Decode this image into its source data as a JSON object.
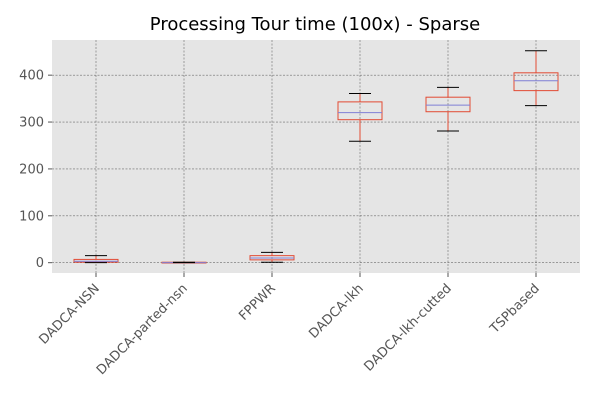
{
  "chart_data": {
    "type": "box",
    "title": "Processing Tour time (100x) - Sparse",
    "xlabel": "",
    "ylabel": "",
    "ylim": [
      -22,
      475
    ],
    "yticks": [
      0,
      100,
      200,
      300,
      400
    ],
    "grid": true,
    "categories": [
      "DADCA-NSN",
      "DADCA-parted-nsn",
      "FPPWR",
      "DADCA-lkh",
      "DADCA-lkh-cutted",
      "TSPbased"
    ],
    "boxes": [
      {
        "label": "DADCA-NSN",
        "whislo": 0,
        "q1": 1,
        "med": 3,
        "q3": 7,
        "whishi": 15
      },
      {
        "label": "DADCA-parted-nsn",
        "whislo": 0,
        "q1": 0,
        "med": 0,
        "q3": 1,
        "whishi": 1
      },
      {
        "label": "FPPWR",
        "whislo": 1,
        "q1": 6,
        "med": 10,
        "q3": 15,
        "whishi": 22
      },
      {
        "label": "DADCA-lkh",
        "whislo": 259,
        "q1": 305,
        "med": 320,
        "q3": 343,
        "whishi": 361
      },
      {
        "label": "DADCA-lkh-cutted",
        "whislo": 281,
        "q1": 322,
        "med": 336,
        "q3": 353,
        "whishi": 374
      },
      {
        "label": "TSPbased",
        "whislo": 335,
        "q1": 367,
        "med": 388,
        "q3": 405,
        "whishi": 452
      }
    ],
    "colors": {
      "plot_background": "#e5e5e5",
      "grid": "#6b6b6b",
      "box": "#e24a33",
      "median": "#7f7fd5",
      "whisker": "#e24a33",
      "cap": "#000000",
      "text": "#555555",
      "title": "#000000"
    }
  }
}
